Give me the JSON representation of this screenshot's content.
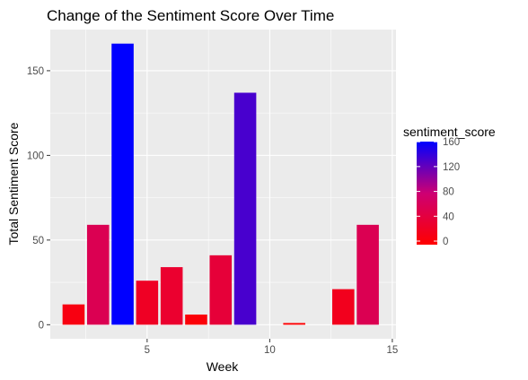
{
  "chart_data": {
    "type": "bar",
    "title": "Change of the Sentiment Score Over Time",
    "xlabel": "Week",
    "ylabel": "Total Sentiment Score",
    "x": [
      2,
      3,
      4,
      5,
      6,
      7,
      8,
      9,
      11,
      13,
      14
    ],
    "values": [
      12,
      59,
      166,
      26,
      34,
      6,
      41,
      137,
      1,
      21,
      59
    ],
    "xlim": [
      1.05,
      15.15
    ],
    "ylim": [
      -8.3,
      174.3
    ],
    "xticks": [
      5,
      10,
      15
    ],
    "yticks": [
      0,
      50,
      100,
      150
    ],
    "grid": true,
    "panel_background": "#EBEBEB",
    "grid_color": "#FFFFFF",
    "legend": {
      "title": "sentiment_score",
      "position": "right",
      "breaks": [
        160,
        120,
        80,
        40,
        0
      ],
      "low_color": "#FF0000",
      "high_color": "#0000FF",
      "range": [
        0,
        166
      ]
    }
  }
}
